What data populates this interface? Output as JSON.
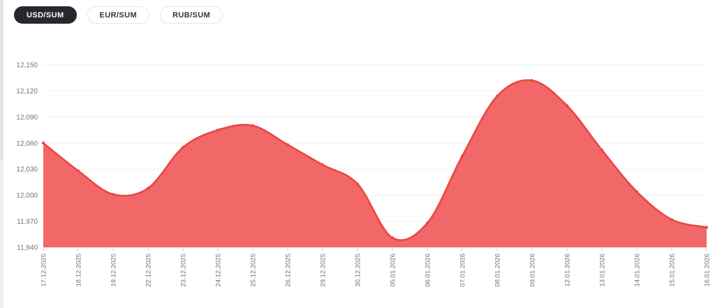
{
  "tabs": [
    {
      "label": "USD/SUM",
      "active": true
    },
    {
      "label": "EUR/SUM",
      "active": false
    },
    {
      "label": "RUB/SUM",
      "active": false
    }
  ],
  "chart_data": {
    "type": "area",
    "title": "",
    "x": [
      "17.12.2025",
      "18.12.2025",
      "19.12.2025",
      "22.12.2025",
      "23.12.2025",
      "24.12.2025",
      "25.12.2025",
      "26.12.2025",
      "29.12.2025",
      "30.12.2025",
      "05.01.2026",
      "06.01.2026",
      "07.01.2026",
      "08.01.2026",
      "09.01.2026",
      "12.01.2026",
      "13.01.2026",
      "14.01.2026",
      "15.01.2026",
      "16.01.2026"
    ],
    "series": [
      {
        "name": "USD/SUM",
        "values": [
          12060,
          12028,
          12001,
          12008,
          12055,
          12075,
          12080,
          12058,
          12035,
          12013,
          11951,
          11968,
          12045,
          12114,
          12132,
          12103,
          12052,
          12004,
          11972,
          11963
        ]
      }
    ],
    "ylim": [
      11940,
      12150
    ],
    "ytick_step": 30,
    "ytick_labels": [
      "11,940",
      "11,970",
      "12,000",
      "12,030",
      "12,060",
      "12,090",
      "12,120",
      "12,150"
    ],
    "grid": true,
    "legend_position": "none",
    "xlabel": "",
    "ylabel": "",
    "colors": {
      "area_fill": "#f15f5f",
      "line_stroke": "#ea4646",
      "marker": "#ea4646",
      "gridline": "#f0f1f3",
      "axis_text": "#71737c",
      "tick_mark": "#c9cad1"
    }
  }
}
